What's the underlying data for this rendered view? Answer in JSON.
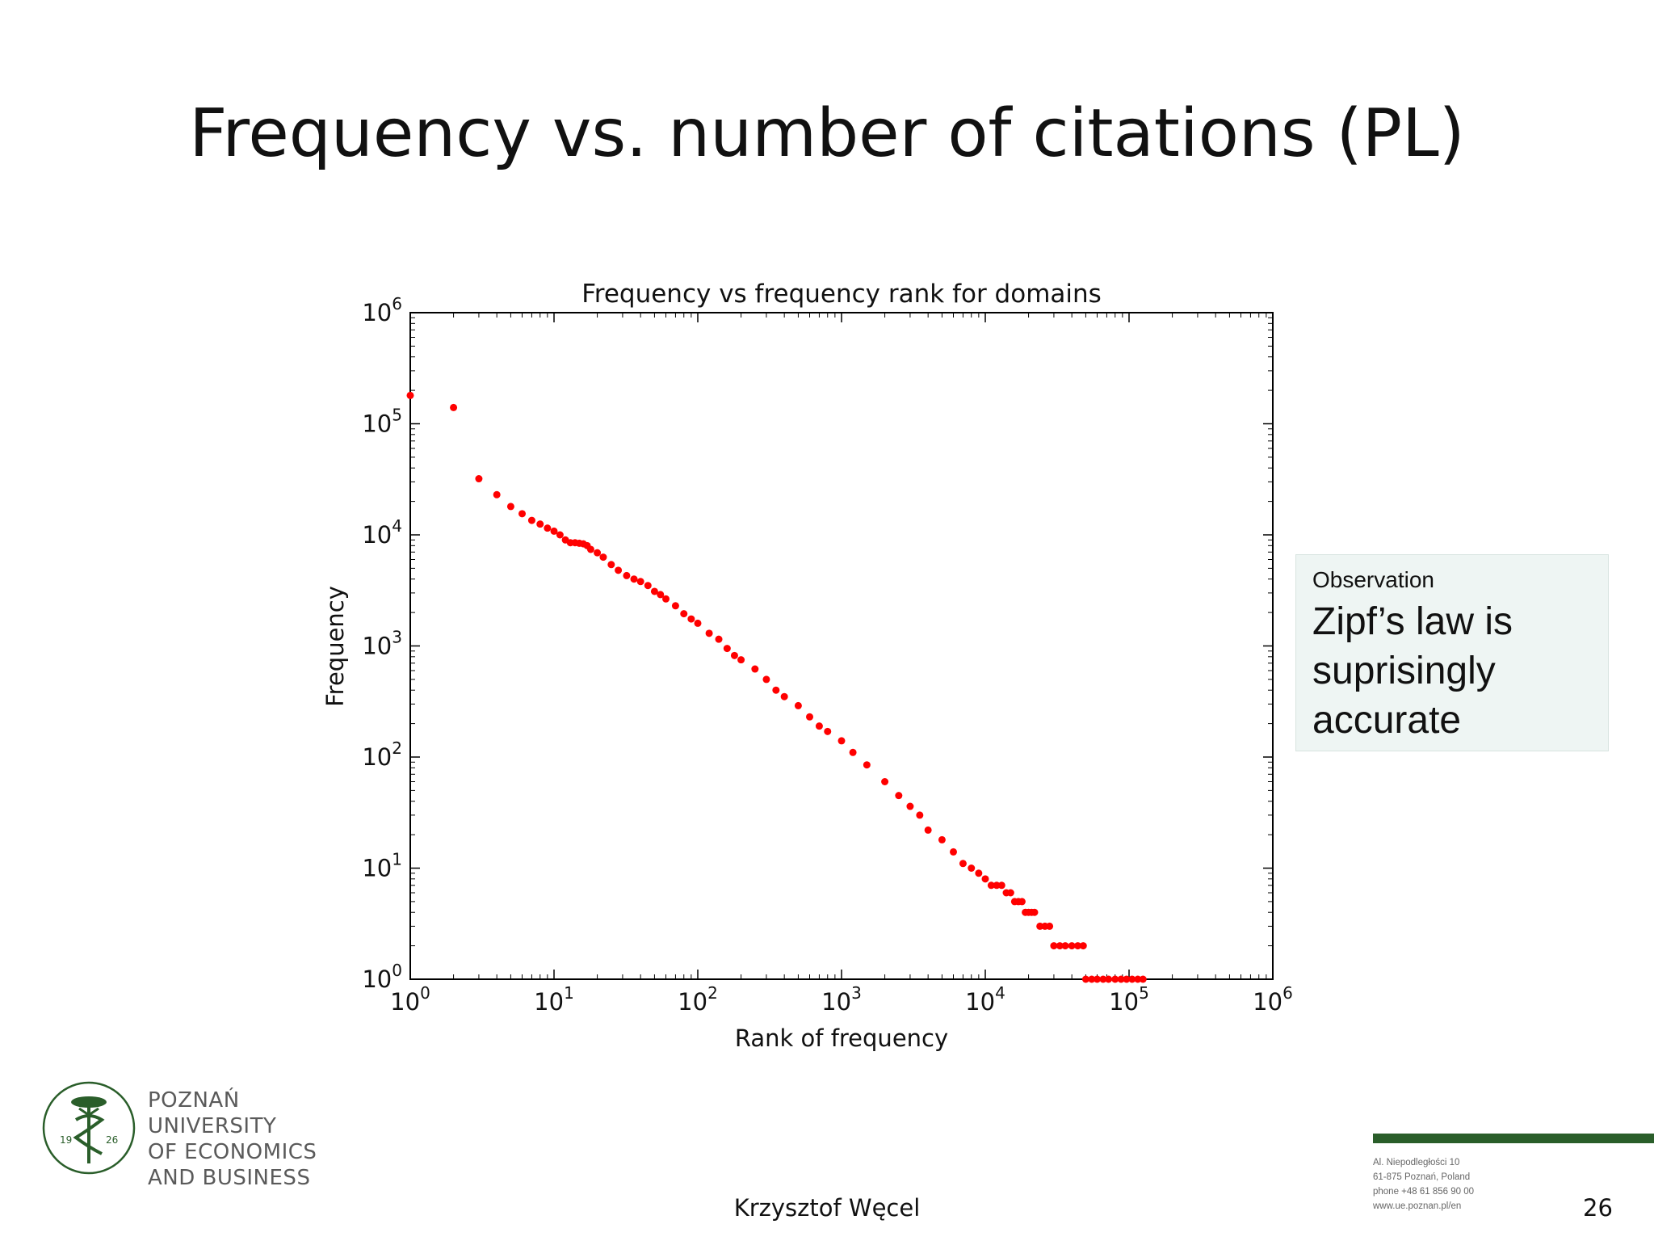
{
  "slide": {
    "title": "Frequency vs. number of citations (PL)",
    "author": "Krzysztof Węcel",
    "page_number": "26"
  },
  "observation": {
    "heading": "Observation",
    "text": "Zipf’s law is suprisingly accurate"
  },
  "logo": {
    "line1": "POZNAŃ UNIVERSITY",
    "line2": "OF ECONOMICS",
    "line3": "AND BUSINESS",
    "seal_left": "19",
    "seal_right": "26"
  },
  "address": {
    "line1": "Al. Niepodległości 10",
    "line2": "61-875 Poznań, Poland",
    "line3": "phone +48 61 856 90 00",
    "line4": "www.ue.poznan.pl/en"
  },
  "colors": {
    "marker": "#ff0000",
    "brand_green": "#2a5e2a"
  },
  "chart_data": {
    "type": "scatter",
    "title": "Frequency vs frequency rank for domains",
    "xlabel": "Rank of frequency",
    "ylabel": "Frequency",
    "xscale": "log",
    "yscale": "log",
    "xlim": [
      1,
      1000000
    ],
    "ylim": [
      1,
      1000000
    ],
    "x_ticks": [
      {
        "base": "10",
        "exp": "0"
      },
      {
        "base": "10",
        "exp": "1"
      },
      {
        "base": "10",
        "exp": "2"
      },
      {
        "base": "10",
        "exp": "3"
      },
      {
        "base": "10",
        "exp": "4"
      },
      {
        "base": "10",
        "exp": "5"
      },
      {
        "base": "10",
        "exp": "6"
      }
    ],
    "y_ticks": [
      {
        "base": "10",
        "exp": "0"
      },
      {
        "base": "10",
        "exp": "1"
      },
      {
        "base": "10",
        "exp": "2"
      },
      {
        "base": "10",
        "exp": "3"
      },
      {
        "base": "10",
        "exp": "4"
      },
      {
        "base": "10",
        "exp": "5"
      },
      {
        "base": "10",
        "exp": "6"
      }
    ],
    "grid": false,
    "series": [
      {
        "points": [
          [
            1,
            180000
          ],
          [
            2,
            140000
          ],
          [
            3,
            32000
          ],
          [
            4,
            23000
          ],
          [
            5,
            18000
          ],
          [
            6,
            15500
          ],
          [
            7,
            13500
          ],
          [
            8,
            12500
          ],
          [
            9,
            11500
          ],
          [
            10,
            10800
          ],
          [
            11,
            10000
          ],
          [
            12,
            9000
          ],
          [
            13,
            8500
          ],
          [
            14,
            8500
          ],
          [
            15,
            8400
          ],
          [
            16,
            8300
          ],
          [
            17,
            8000
          ],
          [
            18,
            7400
          ],
          [
            20,
            6900
          ],
          [
            22,
            6300
          ],
          [
            25,
            5400
          ],
          [
            28,
            4800
          ],
          [
            32,
            4300
          ],
          [
            36,
            4000
          ],
          [
            40,
            3800
          ],
          [
            45,
            3500
          ],
          [
            50,
            3100
          ],
          [
            55,
            2900
          ],
          [
            60,
            2650
          ],
          [
            70,
            2300
          ],
          [
            80,
            1950
          ],
          [
            90,
            1750
          ],
          [
            100,
            1600
          ],
          [
            120,
            1300
          ],
          [
            140,
            1150
          ],
          [
            160,
            950
          ],
          [
            180,
            820
          ],
          [
            200,
            750
          ],
          [
            250,
            620
          ],
          [
            300,
            500
          ],
          [
            350,
            400
          ],
          [
            400,
            350
          ],
          [
            500,
            290
          ],
          [
            600,
            230
          ],
          [
            700,
            190
          ],
          [
            800,
            170
          ],
          [
            1000,
            140
          ],
          [
            1200,
            110
          ],
          [
            1500,
            85
          ],
          [
            2000,
            60
          ],
          [
            2500,
            45
          ],
          [
            3000,
            36
          ],
          [
            3500,
            30
          ],
          [
            4000,
            22
          ],
          [
            5000,
            18
          ],
          [
            6000,
            14
          ],
          [
            7000,
            11
          ],
          [
            8000,
            10
          ],
          [
            9000,
            9
          ],
          [
            10000,
            8
          ],
          [
            11000,
            7
          ],
          [
            12000,
            7
          ],
          [
            13000,
            7
          ],
          [
            14000,
            6
          ],
          [
            15000,
            6
          ],
          [
            16000,
            5
          ],
          [
            17000,
            5
          ],
          [
            18000,
            5
          ],
          [
            19000,
            4
          ],
          [
            20000,
            4
          ],
          [
            21000,
            4
          ],
          [
            22000,
            4
          ],
          [
            24000,
            3
          ],
          [
            26000,
            3
          ],
          [
            28000,
            3
          ],
          [
            30000,
            2
          ],
          [
            33000,
            2
          ],
          [
            36000,
            2
          ],
          [
            40000,
            2
          ],
          [
            44000,
            2
          ],
          [
            48000,
            2
          ],
          [
            50000,
            1
          ],
          [
            55000,
            1
          ],
          [
            60000,
            1
          ],
          [
            66000,
            1
          ],
          [
            72000,
            1
          ],
          [
            80000,
            1
          ],
          [
            88000,
            1
          ],
          [
            96000,
            1
          ],
          [
            105000,
            1
          ],
          [
            115000,
            1
          ],
          [
            125000,
            1
          ]
        ]
      }
    ]
  }
}
